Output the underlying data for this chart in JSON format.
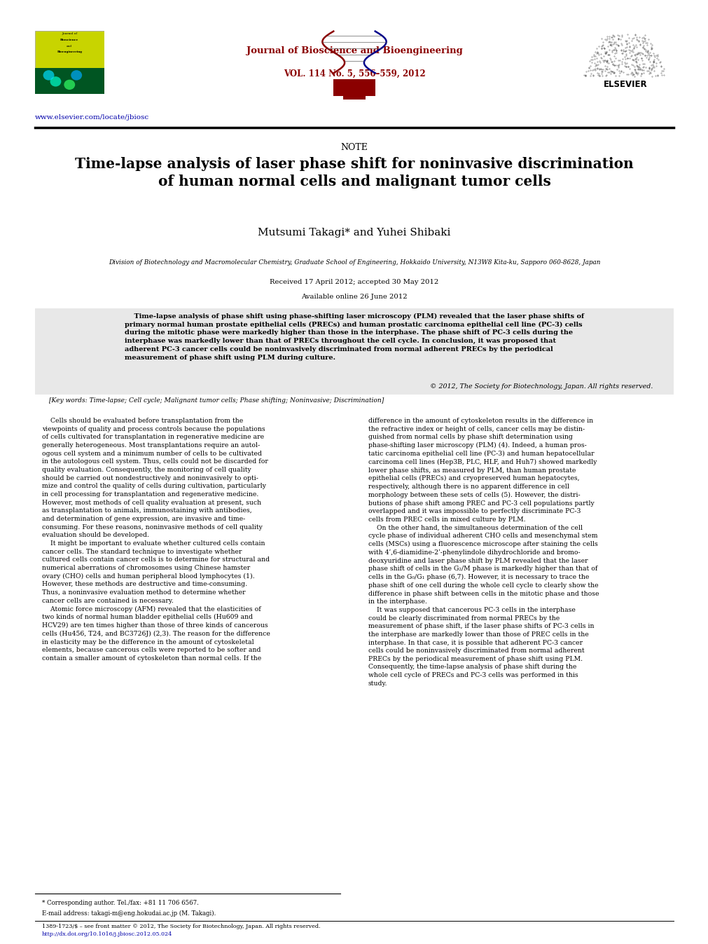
{
  "page_width": 9.92,
  "page_height": 13.23,
  "bg_color": "#ffffff",
  "header": {
    "journal_name": "Journal of Bioscience and Bioengineering",
    "journal_vol": "VOL. 114 No. 5, 556–559, 2012",
    "journal_name_color": "#8B0000",
    "url": "www.elsevier.com/locate/jbiosc",
    "url_color": "#0000AA"
  },
  "note_label": "NOTE",
  "title": "Time-lapse analysis of laser phase shift for noninvasive discrimination\nof human normal cells and malignant tumor cells",
  "authors": "Mutsumi Takagi* and Yuhei Shibaki",
  "affiliation": "Division of Biotechnology and Macromolecular Chemistry, Graduate School of Engineering, Hokkaido University, N13W8 Kita-ku, Sapporo 060-8628, Japan",
  "received": "Received 17 April 2012; accepted 30 May 2012",
  "available": "Available online 26 June 2012",
  "abstract_text": "    Time-lapse analysis of phase shift using phase-shifting laser microscopy (PLM) revealed that the laser phase shifts of\nprimary normal human prostate epithelial cells (PRECs) and human prostatic carcinoma epithelial cell line (PC-3) cells\nduring the mitotic phase were markedly higher than those in the interphase. The phase shift of PC-3 cells during the\ninterphase was markedly lower than that of PRECs throughout the cell cycle. In conclusion, it was proposed that\nadherent PC-3 cancer cells could be noninvasively discriminated from normal adherent PRECs by the periodical\nmeasurement of phase shift using PLM during culture.",
  "copyright": "© 2012, The Society for Biotechnology, Japan. All rights reserved.",
  "keywords": "[Key words: Time-lapse; Cell cycle; Malignant tumor cells; Phase shifting; Noninvasive; Discrimination]",
  "body_col1": "    Cells should be evaluated before transplantation from the\nviewpoints of quality and process controls because the populations\nof cells cultivated for transplantation in regenerative medicine are\ngenerally heterogeneous. Most transplantations require an autol-\nogous cell system and a minimum number of cells to be cultivated\nin the autologous cell system. Thus, cells could not be discarded for\nquality evaluation. Consequently, the monitoring of cell quality\nshould be carried out nondestructively and noninvasively to opti-\nmize and control the quality of cells during cultivation, particularly\nin cell processing for transplantation and regenerative medicine.\nHowever, most methods of cell quality evaluation at present, such\nas transplantation to animals, immunostaining with antibodies,\nand determination of gene expression, are invasive and time-\nconsuming. For these reasons, noninvasive methods of cell quality\nevaluation should be developed.\n    It might be important to evaluate whether cultured cells contain\ncancer cells. The standard technique to investigate whether\ncultured cells contain cancer cells is to determine for structural and\nnumerical aberrations of chromosomes using Chinese hamster\novary (CHO) cells and human peripheral blood lymphocytes (1).\nHowever, these methods are destructive and time-consuming.\nThus, a noninvasive evaluation method to determine whether\ncancer cells are contained is necessary.\n    Atomic force microscopy (AFM) revealed that the elasticities of\ntwo kinds of normal human bladder epithelial cells (Hu609 and\nHCV29) are ten times higher than those of three kinds of cancerous\ncells (Hu456, T24, and BC3726J) (2,3). The reason for the difference\nin elasticity may be the difference in the amount of cytoskeletal\nelements, because cancerous cells were reported to be softer and\ncontain a smaller amount of cytoskeleton than normal cells. If the",
  "body_col2": "difference in the amount of cytoskeleton results in the difference in\nthe refractive index or height of cells, cancer cells may be distin-\nguished from normal cells by phase shift determination using\nphase-shifting laser microscopy (PLM) (4). Indeed, a human pros-\ntatic carcinoma epithelial cell line (PC-3) and human hepatocellular\ncarcinoma cell lines (Hep3B, PLC, HLF, and Huh7) showed markedly\nlower phase shifts, as measured by PLM, than human prostate\nepithelial cells (PRECs) and cryopreserved human hepatocytes,\nrespectively, although there is no apparent difference in cell\nmorphology between these sets of cells (5). However, the distri-\nbutions of phase shift among PREC and PC-3 cell populations partly\noverlapped and it was impossible to perfectly discriminate PC-3\ncells from PREC cells in mixed culture by PLM.\n    On the other hand, the simultaneous determination of the cell\ncycle phase of individual adherent CHO cells and mesenchymal stem\ncells (MSCs) using a fluorescence microscope after staining the cells\nwith 4ʹ,6-diamidine-2ʹ-phenylindole dihydrochloride and bromo-\ndeoxyuridine and laser phase shift by PLM revealed that the laser\nphase shift of cells in the G₂/M phase is markedly higher than that of\ncells in the G₀/G₁ phase (6,7). However, it is necessary to trace the\nphase shift of one cell during the whole cell cycle to clearly show the\ndifference in phase shift between cells in the mitotic phase and those\nin the interphase.\n    It was supposed that cancerous PC-3 cells in the interphase\ncould be clearly discriminated from normal PRECs by the\nmeasurement of phase shift, if the laser phase shifts of PC-3 cells in\nthe interphase are markedly lower than those of PREC cells in the\ninterphase. In that case, it is possible that adherent PC-3 cancer\ncells could be noninvasively discriminated from normal adherent\nPRECs by the periodical measurement of phase shift using PLM.\nConsequently, the time-lapse analysis of phase shift during the\nwhole cell cycle of PRECs and PC-3 cells was performed in this\nstudy.",
  "footnote_star": "* Corresponding author. Tel./fax: +81 11 706 6567.",
  "footnote_email": "E-mail address: takagi-m@eng.hokudai.ac.jp (M. Takagi).",
  "footer_issn": "1389-1723/$ – see front matter © 2012, The Society for Biotechnology, Japan. All rights reserved.",
  "footer_doi": "http://dx.doi.org/10.1016/j.jbiosc.2012.05.024"
}
